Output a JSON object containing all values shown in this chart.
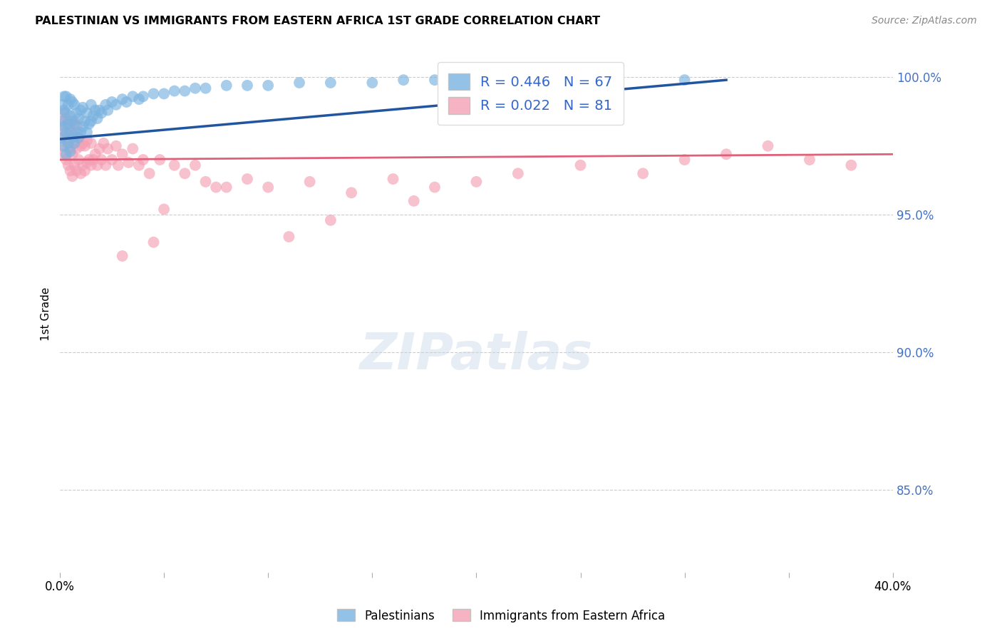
{
  "title": "PALESTINIAN VS IMMIGRANTS FROM EASTERN AFRICA 1ST GRADE CORRELATION CHART",
  "source": "Source: ZipAtlas.com",
  "ylabel": "1st Grade",
  "xlim": [
    0.0,
    0.4
  ],
  "ylim": [
    0.82,
    1.008
  ],
  "yticks": [
    0.85,
    0.9,
    0.95,
    1.0
  ],
  "ytick_labels": [
    "85.0%",
    "90.0%",
    "95.0%",
    "100.0%"
  ],
  "blue_R": 0.446,
  "blue_N": 67,
  "pink_R": 0.022,
  "pink_N": 81,
  "blue_color": "#7ab3e0",
  "pink_color": "#f4a0b5",
  "blue_line_color": "#2255a0",
  "pink_line_color": "#e0607a",
  "legend_label_blue": "Palestinians",
  "legend_label_pink": "Immigrants from Eastern Africa",
  "blue_scatter_x": [
    0.001,
    0.001,
    0.001,
    0.002,
    0.002,
    0.002,
    0.002,
    0.003,
    0.003,
    0.003,
    0.003,
    0.004,
    0.004,
    0.004,
    0.005,
    0.005,
    0.005,
    0.005,
    0.006,
    0.006,
    0.006,
    0.007,
    0.007,
    0.007,
    0.008,
    0.008,
    0.009,
    0.009,
    0.01,
    0.01,
    0.011,
    0.011,
    0.012,
    0.013,
    0.013,
    0.014,
    0.015,
    0.015,
    0.016,
    0.017,
    0.018,
    0.019,
    0.02,
    0.022,
    0.023,
    0.025,
    0.027,
    0.03,
    0.032,
    0.035,
    0.038,
    0.04,
    0.045,
    0.05,
    0.055,
    0.06,
    0.065,
    0.07,
    0.08,
    0.09,
    0.1,
    0.115,
    0.13,
    0.15,
    0.165,
    0.18,
    0.3
  ],
  "blue_scatter_y": [
    0.978,
    0.984,
    0.99,
    0.975,
    0.982,
    0.988,
    0.993,
    0.972,
    0.98,
    0.987,
    0.993,
    0.976,
    0.983,
    0.99,
    0.973,
    0.98,
    0.986,
    0.992,
    0.978,
    0.984,
    0.991,
    0.976,
    0.983,
    0.99,
    0.98,
    0.987,
    0.978,
    0.985,
    0.98,
    0.988,
    0.982,
    0.989,
    0.984,
    0.98,
    0.987,
    0.983,
    0.984,
    0.99,
    0.986,
    0.988,
    0.985,
    0.988,
    0.987,
    0.99,
    0.988,
    0.991,
    0.99,
    0.992,
    0.991,
    0.993,
    0.992,
    0.993,
    0.994,
    0.994,
    0.995,
    0.995,
    0.996,
    0.996,
    0.997,
    0.997,
    0.997,
    0.998,
    0.998,
    0.998,
    0.999,
    0.999,
    0.999
  ],
  "pink_scatter_x": [
    0.001,
    0.001,
    0.002,
    0.002,
    0.002,
    0.003,
    0.003,
    0.003,
    0.004,
    0.004,
    0.004,
    0.005,
    0.005,
    0.005,
    0.006,
    0.006,
    0.006,
    0.007,
    0.007,
    0.007,
    0.008,
    0.008,
    0.008,
    0.009,
    0.009,
    0.01,
    0.01,
    0.011,
    0.011,
    0.012,
    0.012,
    0.013,
    0.013,
    0.014,
    0.015,
    0.015,
    0.016,
    0.017,
    0.018,
    0.019,
    0.02,
    0.021,
    0.022,
    0.023,
    0.025,
    0.027,
    0.028,
    0.03,
    0.033,
    0.035,
    0.038,
    0.04,
    0.043,
    0.048,
    0.055,
    0.06,
    0.065,
    0.07,
    0.08,
    0.09,
    0.1,
    0.12,
    0.14,
    0.16,
    0.18,
    0.2,
    0.22,
    0.25,
    0.28,
    0.3,
    0.32,
    0.34,
    0.36,
    0.38,
    0.17,
    0.13,
    0.11,
    0.075,
    0.05,
    0.045,
    0.03
  ],
  "pink_scatter_y": [
    0.975,
    0.983,
    0.972,
    0.98,
    0.987,
    0.97,
    0.978,
    0.985,
    0.968,
    0.976,
    0.984,
    0.966,
    0.974,
    0.982,
    0.964,
    0.972,
    0.98,
    0.968,
    0.976,
    0.984,
    0.966,
    0.974,
    0.982,
    0.97,
    0.978,
    0.965,
    0.975,
    0.968,
    0.976,
    0.966,
    0.975,
    0.969,
    0.977,
    0.97,
    0.968,
    0.976,
    0.97,
    0.972,
    0.968,
    0.974,
    0.97,
    0.976,
    0.968,
    0.974,
    0.97,
    0.975,
    0.968,
    0.972,
    0.969,
    0.974,
    0.968,
    0.97,
    0.965,
    0.97,
    0.968,
    0.965,
    0.968,
    0.962,
    0.96,
    0.963,
    0.96,
    0.962,
    0.958,
    0.963,
    0.96,
    0.962,
    0.965,
    0.968,
    0.965,
    0.97,
    0.972,
    0.975,
    0.97,
    0.968,
    0.955,
    0.948,
    0.942,
    0.96,
    0.952,
    0.94,
    0.935
  ]
}
